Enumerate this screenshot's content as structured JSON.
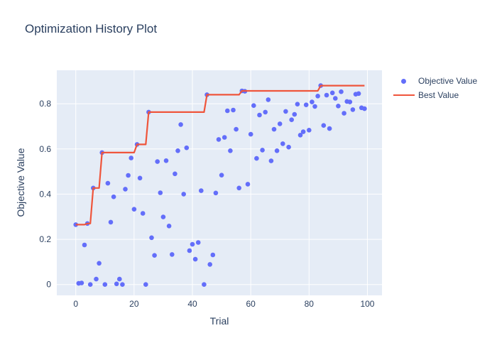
{
  "chart_data": {
    "type": "scatter",
    "title": "Optimization History Plot",
    "xlabel": "Trial",
    "ylabel": "Objective Value",
    "grid": true,
    "legend_position": "right",
    "x_range": [
      -6.5,
      105
    ],
    "y_range": [
      -0.048,
      0.948
    ],
    "x_ticks": [
      0,
      20,
      40,
      60,
      80,
      100
    ],
    "x_tick_labels": [
      "0",
      "20",
      "40",
      "60",
      "80",
      "100"
    ],
    "y_ticks": [
      0,
      0.2,
      0.4,
      0.6,
      0.8
    ],
    "y_tick_labels": [
      "0",
      "0.2",
      "0.4",
      "0.6",
      "0.8"
    ],
    "colors": {
      "marker": "#636efa",
      "line": "#ef553b",
      "plot_background": "#e5ecf6",
      "gridline": "#ffffff",
      "text": "#2a3f5f",
      "paper": "#ffffff"
    },
    "series": [
      {
        "name": "Objective Value",
        "type": "scatter",
        "color": "#636efa",
        "x_is_trial_index": true,
        "values": [
          0.265,
          0.005,
          0.007,
          0.175,
          0.27,
          0.0,
          0.427,
          0.024,
          0.094,
          0.584,
          0.0,
          0.448,
          0.276,
          0.388,
          0.003,
          0.024,
          0.0,
          0.422,
          0.483,
          0.56,
          0.333,
          0.62,
          0.471,
          0.315,
          0.0,
          0.763,
          0.207,
          0.129,
          0.544,
          0.406,
          0.299,
          0.548,
          0.259,
          0.133,
          0.49,
          0.592,
          0.708,
          0.4,
          0.605,
          0.15,
          0.178,
          0.112,
          0.186,
          0.415,
          0.0,
          0.84,
          0.089,
          0.131,
          0.405,
          0.642,
          0.484,
          0.651,
          0.769,
          0.592,
          0.772,
          0.687,
          0.427,
          0.857,
          0.855,
          0.444,
          0.665,
          0.792,
          0.558,
          0.75,
          0.595,
          0.763,
          0.818,
          0.547,
          0.687,
          0.592,
          0.711,
          0.623,
          0.766,
          0.608,
          0.729,
          0.753,
          0.798,
          0.661,
          0.676,
          0.795,
          0.683,
          0.808,
          0.788,
          0.834,
          0.88,
          0.704,
          0.838,
          0.69,
          0.848,
          0.824,
          0.79,
          0.853,
          0.758,
          0.81,
          0.808,
          0.774,
          0.842,
          0.845,
          0.782,
          0.778
        ]
      },
      {
        "name": "Best Value",
        "type": "line",
        "color": "#ef553b",
        "derivation": "running_maximum_of_objective",
        "steps": [
          [
            0,
            0.265
          ],
          [
            6,
            0.427
          ],
          [
            9,
            0.584
          ],
          [
            21,
            0.62
          ],
          [
            25,
            0.763
          ],
          [
            45,
            0.84
          ],
          [
            57,
            0.857
          ],
          [
            84,
            0.88
          ],
          [
            99,
            0.88
          ]
        ]
      }
    ]
  },
  "legend": {
    "objective_label": "Objective Value",
    "best_label": "Best Value"
  }
}
